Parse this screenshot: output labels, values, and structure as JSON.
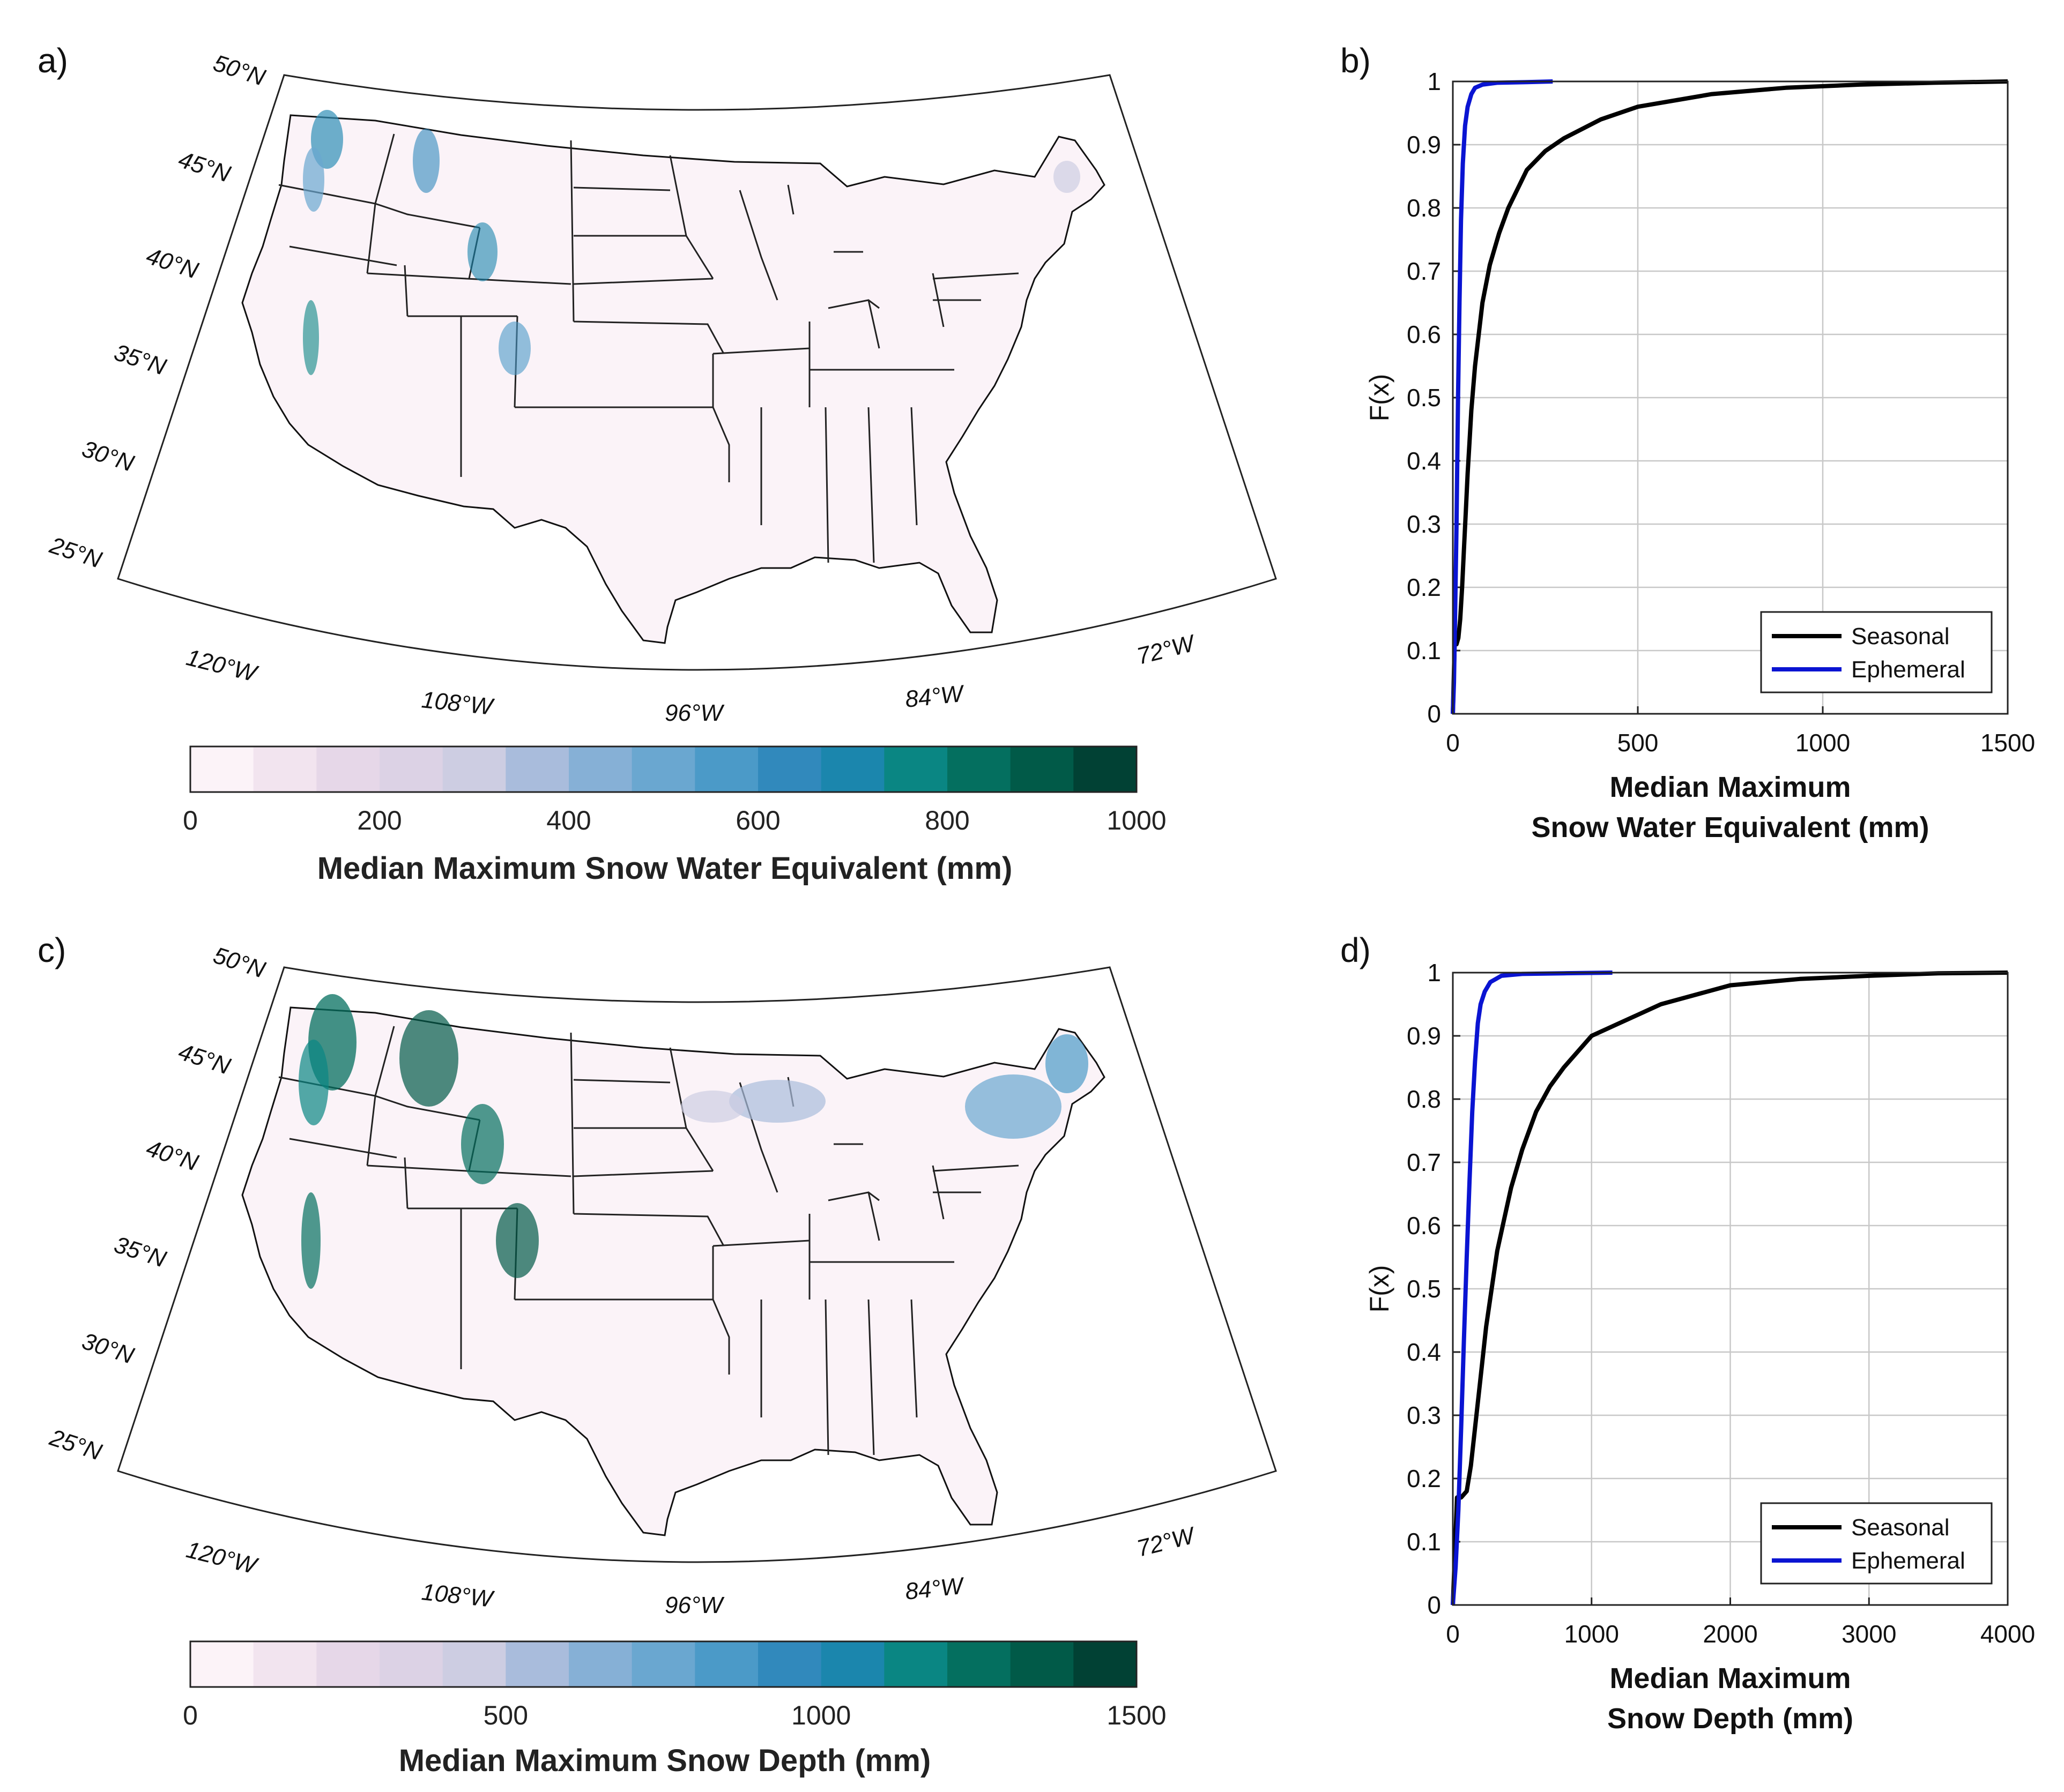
{
  "panels": {
    "a": "a)",
    "b": "b)",
    "c": "c)",
    "d": "d)"
  },
  "maps": [
    {
      "id": "swe",
      "lat_labels": [
        "50°N",
        "45°N",
        "40°N",
        "35°N",
        "30°N",
        "25°N"
      ],
      "lon_labels": [
        "120°W",
        "108°W",
        "96°W",
        "84°W",
        "72°W"
      ],
      "colorbar": {
        "title": "Median Maximum Snow Water Equivalent (mm)",
        "ticks": [
          "0",
          "200",
          "400",
          "600",
          "800",
          "1000"
        ],
        "range": [
          0,
          1000
        ],
        "colors": [
          "#fcf3f8",
          "#f2e4ef",
          "#e6d7e8",
          "#dcd2e5",
          "#cdcde2",
          "#a9bcdc",
          "#86b0d6",
          "#6aa7d0",
          "#4b9ac8",
          "#3189bc",
          "#1b86ad",
          "#0a8683",
          "#046f5f",
          "#015a48",
          "#014134"
        ]
      }
    },
    {
      "id": "depth",
      "lat_labels": [
        "50°N",
        "45°N",
        "40°N",
        "35°N",
        "30°N",
        "25°N"
      ],
      "lon_labels": [
        "120°W",
        "108°W",
        "96°W",
        "84°W",
        "72°W"
      ],
      "colorbar": {
        "title": "Median Maximum Snow Depth (mm)",
        "ticks": [
          "0",
          "500",
          "1000",
          "1500"
        ],
        "range": [
          0,
          1500
        ],
        "colors": [
          "#fcf3f8",
          "#f2e4ef",
          "#e6d7e8",
          "#dcd2e5",
          "#cdcde2",
          "#a9bcdc",
          "#86b0d6",
          "#6aa7d0",
          "#4b9ac8",
          "#3189bc",
          "#1b86ad",
          "#0a8683",
          "#046f5f",
          "#015a48",
          "#014134"
        ]
      }
    }
  ],
  "chart_data": [
    {
      "type": "line",
      "title": "",
      "xlabel_lines": [
        "Median Maximum",
        "Snow Water Equivalent (mm)"
      ],
      "ylabel": "F(x)",
      "xlim": [
        0,
        1500
      ],
      "ylim": [
        0,
        1
      ],
      "xticks": [
        "0",
        "500",
        "1000",
        "1500"
      ],
      "yticks": [
        "0",
        "0.1",
        "0.2",
        "0.3",
        "0.4",
        "0.5",
        "0.6",
        "0.7",
        "0.8",
        "0.9",
        "1"
      ],
      "grid": true,
      "legend_position": "bottom-right",
      "series": [
        {
          "name": "Seasonal",
          "color": "#000000",
          "x": [
            0,
            5,
            10,
            15,
            20,
            25,
            30,
            35,
            40,
            45,
            50,
            60,
            70,
            80,
            100,
            125,
            150,
            200,
            250,
            300,
            400,
            500,
            700,
            900,
            1100,
            1300,
            1500
          ],
          "y": [
            0,
            0.11,
            0.11,
            0.12,
            0.15,
            0.2,
            0.26,
            0.32,
            0.38,
            0.43,
            0.48,
            0.55,
            0.6,
            0.65,
            0.71,
            0.76,
            0.8,
            0.86,
            0.89,
            0.91,
            0.94,
            0.96,
            0.98,
            0.99,
            0.995,
            0.998,
            1.0
          ]
        },
        {
          "name": "Ephemeral",
          "color": "#0a14d2",
          "x": [
            0,
            3,
            6,
            10,
            14,
            18,
            22,
            27,
            33,
            40,
            50,
            60,
            80,
            120,
            200,
            270
          ],
          "y": [
            0,
            0.05,
            0.15,
            0.3,
            0.5,
            0.65,
            0.78,
            0.87,
            0.93,
            0.96,
            0.98,
            0.99,
            0.995,
            0.998,
            0.999,
            1.0
          ]
        }
      ]
    },
    {
      "type": "line",
      "title": "",
      "xlabel_lines": [
        "Median Maximum",
        "Snow Depth (mm)"
      ],
      "ylabel": "F(x)",
      "xlim": [
        0,
        4000
      ],
      "ylim": [
        0,
        1
      ],
      "xticks": [
        "0",
        "1000",
        "2000",
        "3000",
        "4000"
      ],
      "yticks": [
        "0",
        "0.1",
        "0.2",
        "0.3",
        "0.4",
        "0.5",
        "0.6",
        "0.7",
        "0.8",
        "0.9",
        "1"
      ],
      "grid": true,
      "legend_position": "bottom-right",
      "series": [
        {
          "name": "Seasonal",
          "color": "#000000",
          "x": [
            0,
            30,
            60,
            100,
            130,
            160,
            200,
            240,
            280,
            320,
            370,
            420,
            500,
            600,
            700,
            800,
            1000,
            1200,
            1500,
            2000,
            2500,
            3000,
            3500,
            4000
          ],
          "y": [
            0,
            0.17,
            0.17,
            0.18,
            0.22,
            0.28,
            0.36,
            0.44,
            0.5,
            0.56,
            0.61,
            0.66,
            0.72,
            0.78,
            0.82,
            0.85,
            0.9,
            0.92,
            0.95,
            0.98,
            0.99,
            0.995,
            0.999,
            1.0
          ]
        },
        {
          "name": "Ephemeral",
          "color": "#0a14d2",
          "x": [
            0,
            20,
            40,
            60,
            80,
            100,
            120,
            140,
            160,
            180,
            200,
            230,
            270,
            350,
            500,
            800,
            1150
          ],
          "y": [
            0,
            0.06,
            0.15,
            0.28,
            0.42,
            0.55,
            0.67,
            0.78,
            0.86,
            0.92,
            0.95,
            0.97,
            0.985,
            0.995,
            0.998,
            0.999,
            1.0
          ]
        }
      ]
    }
  ]
}
